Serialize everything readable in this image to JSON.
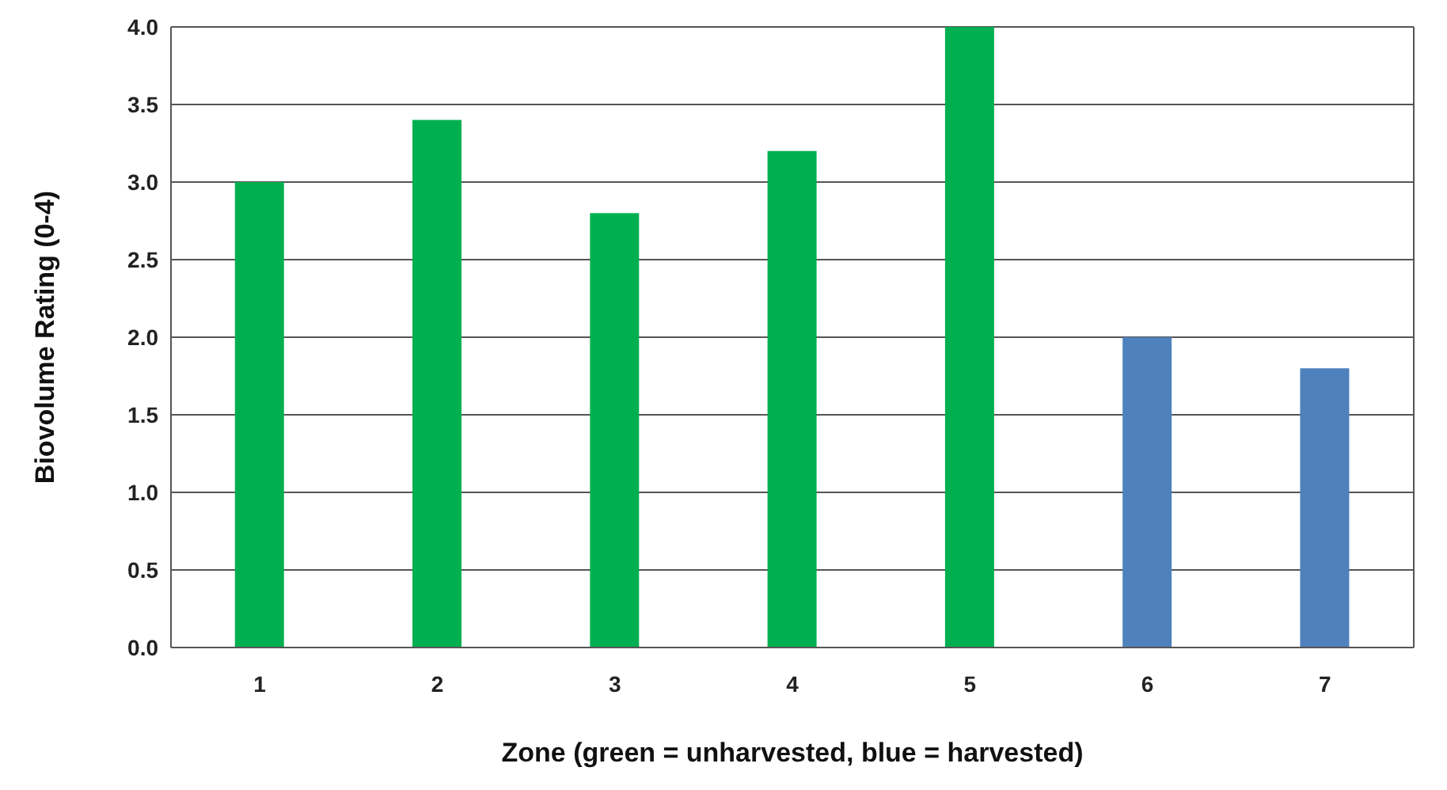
{
  "chart_data": {
    "type": "bar",
    "xlabel": "Zone (green = unharvested, blue = harvested)",
    "ylabel": "Biovolume Rating (0-4)",
    "categories": [
      "1",
      "2",
      "3",
      "4",
      "5",
      "6",
      "7"
    ],
    "values": [
      3.0,
      3.4,
      2.8,
      3.2,
      4.0,
      2.0,
      1.8
    ],
    "colors": [
      "#00b050",
      "#00b050",
      "#00b050",
      "#00b050",
      "#00b050",
      "#4f81bd",
      "#4f81bd"
    ],
    "ylim": [
      0,
      4
    ],
    "yticks": [
      {
        "value": 0,
        "label": "0.0"
      },
      {
        "value": 0.5,
        "label": "0.5"
      },
      {
        "value": 1,
        "label": "1.0"
      },
      {
        "value": 1.5,
        "label": "1.5"
      },
      {
        "value": 2,
        "label": "2.0"
      },
      {
        "value": 2.5,
        "label": "2.5"
      },
      {
        "value": 3,
        "label": "3.0"
      },
      {
        "value": 3.5,
        "label": "3.5"
      },
      {
        "value": 4,
        "label": "4.0"
      }
    ],
    "grid": "y",
    "legend": false
  }
}
